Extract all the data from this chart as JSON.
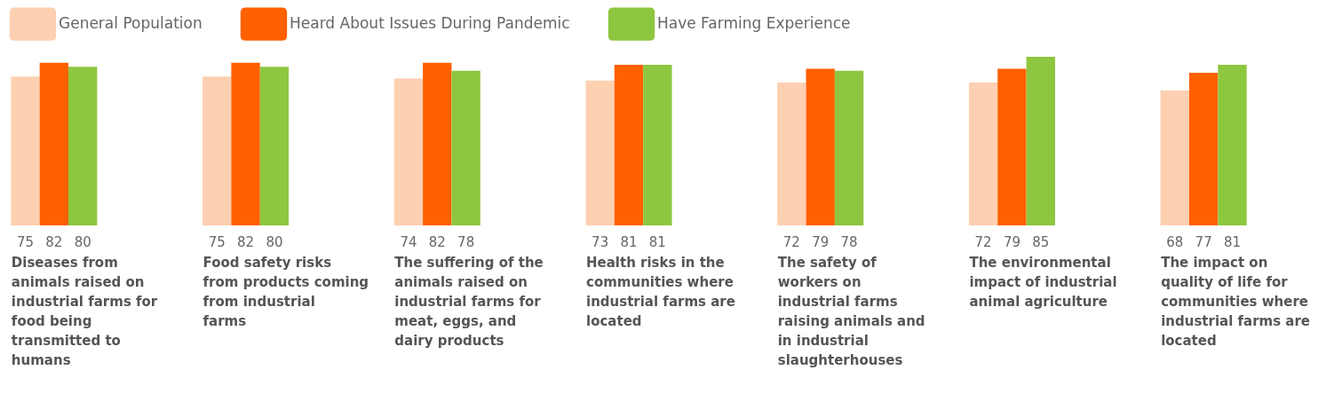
{
  "chart_data": {
    "type": "bar",
    "categories": [
      "Diseases from animals raised on industrial farms for food being transmitted to humans",
      "Food safety risks from products coming from industrial farms",
      "The suffering of the animals raised on industrial farms for meat, eggs, and dairy products",
      "Health risks in the communities where industrial farms are located",
      "The safety of workers on industrial farms raising animals and in industrial slaughterhouses",
      "The environmental impact of industrial animal agriculture",
      "The impact on quality of life for communities where industrial farms are located"
    ],
    "series": [
      {
        "name": "General Population",
        "color": "#fdd0b1",
        "values": [
          75,
          75,
          74,
          73,
          72,
          72,
          68
        ]
      },
      {
        "name": "Heard About Issues During Pandemic",
        "color": "#ff6000",
        "values": [
          82,
          82,
          82,
          81,
          79,
          79,
          77
        ]
      },
      {
        "name": "Have Farming Experience",
        "color": "#8dc63f",
        "values": [
          80,
          80,
          78,
          81,
          78,
          85,
          81
        ]
      }
    ],
    "data_labels": true,
    "legend": "top left"
  }
}
